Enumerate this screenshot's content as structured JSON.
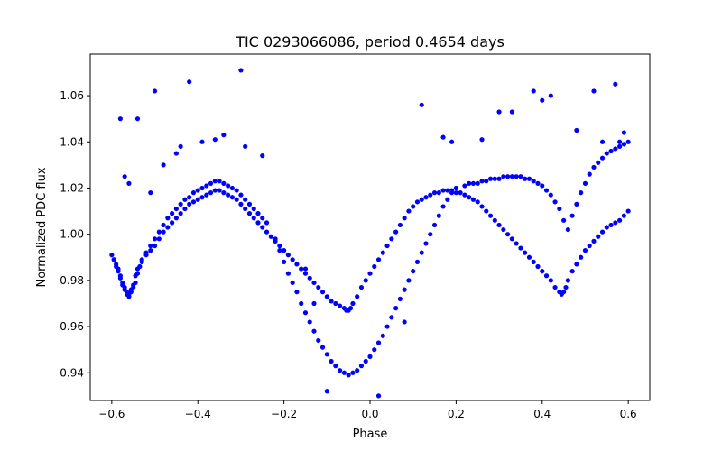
{
  "chart_data": {
    "type": "scatter",
    "title": "TIC 0293066086, period 0.4654 days",
    "xlabel": "Phase",
    "ylabel": "Normalized PDC flux",
    "xlim": [
      -0.65,
      0.65
    ],
    "ylim": [
      0.928,
      1.078
    ],
    "xticks": [
      -0.6,
      -0.4,
      -0.2,
      0.0,
      0.2,
      0.4,
      0.6
    ],
    "xtick_labels": [
      "−0.6",
      "−0.4",
      "−0.2",
      "0.0",
      "0.2",
      "0.4",
      "0.6"
    ],
    "yticks": [
      0.94,
      0.96,
      0.98,
      1.0,
      1.02,
      1.04,
      1.06
    ],
    "ytick_labels": [
      "0.94",
      "0.96",
      "0.98",
      "1.00",
      "1.02",
      "1.04",
      "1.06"
    ],
    "grid": false,
    "marker_color": "#0000ff",
    "series": [
      {
        "name": "",
        "x": [
          -0.6,
          -0.595,
          -0.59,
          -0.585,
          -0.58,
          -0.575,
          -0.57,
          -0.565,
          -0.56,
          -0.555,
          -0.55,
          -0.545,
          -0.54,
          -0.53,
          -0.52,
          -0.51,
          -0.5,
          -0.49,
          -0.48,
          -0.47,
          -0.46,
          -0.45,
          -0.44,
          -0.43,
          -0.42,
          -0.41,
          -0.4,
          -0.39,
          -0.38,
          -0.37,
          -0.36,
          -0.35,
          -0.34,
          -0.33,
          -0.32,
          -0.31,
          -0.3,
          -0.29,
          -0.28,
          -0.27,
          -0.26,
          -0.25,
          -0.24,
          -0.23,
          -0.22,
          -0.21,
          -0.2,
          -0.19,
          -0.18,
          -0.17,
          -0.16,
          -0.15,
          -0.14,
          -0.13,
          -0.12,
          -0.11,
          -0.1,
          -0.09,
          -0.08,
          -0.07,
          -0.06,
          -0.055,
          -0.05,
          -0.045,
          -0.04,
          -0.03,
          -0.02,
          -0.01,
          0.0,
          0.01,
          0.02,
          0.03,
          0.04,
          0.05,
          0.06,
          0.07,
          0.08,
          0.09,
          0.1,
          0.11,
          0.12,
          0.13,
          0.14,
          0.15,
          0.16,
          0.17,
          0.18,
          0.19,
          0.2,
          0.21,
          0.22,
          0.23,
          0.24,
          0.25,
          0.26,
          0.27,
          0.28,
          0.29,
          0.3,
          0.31,
          0.32,
          0.33,
          0.34,
          0.35,
          0.36,
          0.37,
          0.38,
          0.39,
          0.4,
          0.41,
          0.42,
          0.43,
          0.44,
          0.445,
          0.45,
          0.455,
          0.46,
          0.47,
          0.48,
          0.49,
          0.5,
          0.51,
          0.52,
          0.53,
          0.54,
          0.55,
          0.56,
          0.57,
          0.58,
          0.59,
          0.6,
          -0.595,
          -0.59,
          -0.585,
          -0.58,
          -0.575,
          -0.57,
          -0.565,
          -0.56,
          -0.555,
          -0.55,
          -0.545,
          -0.54,
          -0.535,
          -0.53,
          -0.52,
          -0.51,
          -0.5,
          -0.49,
          -0.48,
          -0.47,
          -0.46,
          -0.45,
          -0.44,
          -0.43,
          -0.42,
          -0.41,
          -0.4,
          -0.39,
          -0.38,
          -0.37,
          -0.36,
          -0.35,
          -0.34,
          -0.33,
          -0.32,
          -0.31,
          -0.3,
          -0.29,
          -0.28,
          -0.27,
          -0.26,
          -0.25,
          -0.24,
          -0.22,
          -0.21,
          -0.2,
          -0.19,
          -0.18,
          -0.17,
          -0.16,
          -0.15,
          -0.14,
          -0.13,
          -0.12,
          -0.11,
          -0.1,
          -0.09,
          -0.08,
          -0.07,
          -0.06,
          -0.05,
          -0.04,
          -0.03,
          -0.02,
          -0.01,
          0.0,
          0.01,
          0.02,
          0.03,
          0.04,
          0.05,
          0.06,
          0.07,
          0.08,
          0.09,
          0.1,
          0.11,
          0.12,
          0.13,
          0.14,
          0.15,
          0.16,
          0.17,
          0.18,
          0.19,
          0.2,
          0.22,
          0.23,
          0.24,
          0.25,
          0.26,
          0.27,
          0.28,
          0.29,
          0.3,
          0.31,
          0.32,
          0.33,
          0.34,
          0.35,
          0.36,
          0.37,
          0.38,
          0.39,
          0.4,
          0.41,
          0.42,
          0.43,
          0.44,
          0.45,
          0.46,
          0.47,
          0.48,
          0.49,
          0.5,
          0.51,
          0.52,
          0.53,
          0.54,
          0.55,
          0.56,
          0.57,
          0.58,
          0.59,
          0.6,
          -0.57,
          -0.56,
          -0.51,
          -0.48,
          -0.45,
          -0.44,
          -0.39,
          -0.36,
          -0.34,
          -0.29,
          -0.25,
          -0.58,
          -0.54,
          -0.5,
          -0.42,
          -0.3,
          0.12,
          0.17,
          0.19,
          0.26,
          0.3,
          0.33,
          0.38,
          0.4,
          0.42,
          0.48,
          0.52,
          0.54,
          0.57,
          0.58,
          0.59,
          -0.13,
          -0.15,
          -0.1,
          0.02,
          0.08
        ],
        "y": [
          0.991,
          0.989,
          0.987,
          0.985,
          0.982,
          0.979,
          0.977,
          0.975,
          0.974,
          0.976,
          0.978,
          0.982,
          0.985,
          0.988,
          0.991,
          0.993,
          0.995,
          0.998,
          1.001,
          1.003,
          1.005,
          1.007,
          1.009,
          1.011,
          1.013,
          1.014,
          1.015,
          1.016,
          1.017,
          1.018,
          1.019,
          1.019,
          1.018,
          1.017,
          1.016,
          1.015,
          1.013,
          1.011,
          1.009,
          1.007,
          1.005,
          1.003,
          1.001,
          0.999,
          0.997,
          0.995,
          0.993,
          0.991,
          0.989,
          0.987,
          0.985,
          0.983,
          0.981,
          0.979,
          0.977,
          0.975,
          0.973,
          0.971,
          0.97,
          0.969,
          0.968,
          0.967,
          0.967,
          0.968,
          0.97,
          0.973,
          0.977,
          0.98,
          0.983,
          0.986,
          0.989,
          0.992,
          0.995,
          0.998,
          1.001,
          1.004,
          1.007,
          1.01,
          1.012,
          1.014,
          1.015,
          1.016,
          1.017,
          1.018,
          1.018,
          1.019,
          1.019,
          1.019,
          1.018,
          1.018,
          1.017,
          1.016,
          1.015,
          1.014,
          1.012,
          1.01,
          1.008,
          1.006,
          1.004,
          1.002,
          1.0,
          0.998,
          0.996,
          0.994,
          0.992,
          0.99,
          0.988,
          0.986,
          0.984,
          0.982,
          0.98,
          0.977,
          0.975,
          0.974,
          0.975,
          0.977,
          0.98,
          0.984,
          0.987,
          0.99,
          0.993,
          0.995,
          0.997,
          0.999,
          1.001,
          1.003,
          1.004,
          1.005,
          1.006,
          1.008,
          1.01,
          0.989,
          0.986,
          0.984,
          0.981,
          0.978,
          0.976,
          0.974,
          0.973,
          0.975,
          0.977,
          0.979,
          0.983,
          0.986,
          0.989,
          0.992,
          0.995,
          0.998,
          1.001,
          1.004,
          1.007,
          1.009,
          1.011,
          1.013,
          1.015,
          1.016,
          1.018,
          1.019,
          1.02,
          1.021,
          1.022,
          1.023,
          1.023,
          1.022,
          1.021,
          1.02,
          1.019,
          1.017,
          1.015,
          1.013,
          1.011,
          1.009,
          1.007,
          1.005,
          0.998,
          0.993,
          0.988,
          0.983,
          0.979,
          0.975,
          0.97,
          0.966,
          0.962,
          0.958,
          0.954,
          0.951,
          0.948,
          0.945,
          0.943,
          0.941,
          0.94,
          0.939,
          0.94,
          0.941,
          0.943,
          0.945,
          0.947,
          0.95,
          0.953,
          0.956,
          0.96,
          0.964,
          0.968,
          0.972,
          0.976,
          0.98,
          0.984,
          0.988,
          0.992,
          0.996,
          1.0,
          1.004,
          1.008,
          1.012,
          1.015,
          1.018,
          1.02,
          1.021,
          1.022,
          1.022,
          1.022,
          1.023,
          1.023,
          1.024,
          1.024,
          1.024,
          1.025,
          1.025,
          1.025,
          1.025,
          1.025,
          1.024,
          1.024,
          1.023,
          1.022,
          1.021,
          1.019,
          1.017,
          1.014,
          1.011,
          1.006,
          1.002,
          1.008,
          1.013,
          1.018,
          1.022,
          1.026,
          1.029,
          1.031,
          1.033,
          1.035,
          1.036,
          1.037,
          1.038,
          1.039,
          1.04,
          1.025,
          1.022,
          1.018,
          1.03,
          1.035,
          1.038,
          1.04,
          1.041,
          1.043,
          1.038,
          1.034,
          1.05,
          1.05,
          1.062,
          1.066,
          1.071,
          1.056,
          1.042,
          1.04,
          1.041,
          1.053,
          1.053,
          1.062,
          1.058,
          1.06,
          1.045,
          1.062,
          1.04,
          1.065,
          1.04,
          1.044,
          0.97,
          0.985,
          0.932,
          0.93,
          0.962
        ]
      }
    ]
  }
}
